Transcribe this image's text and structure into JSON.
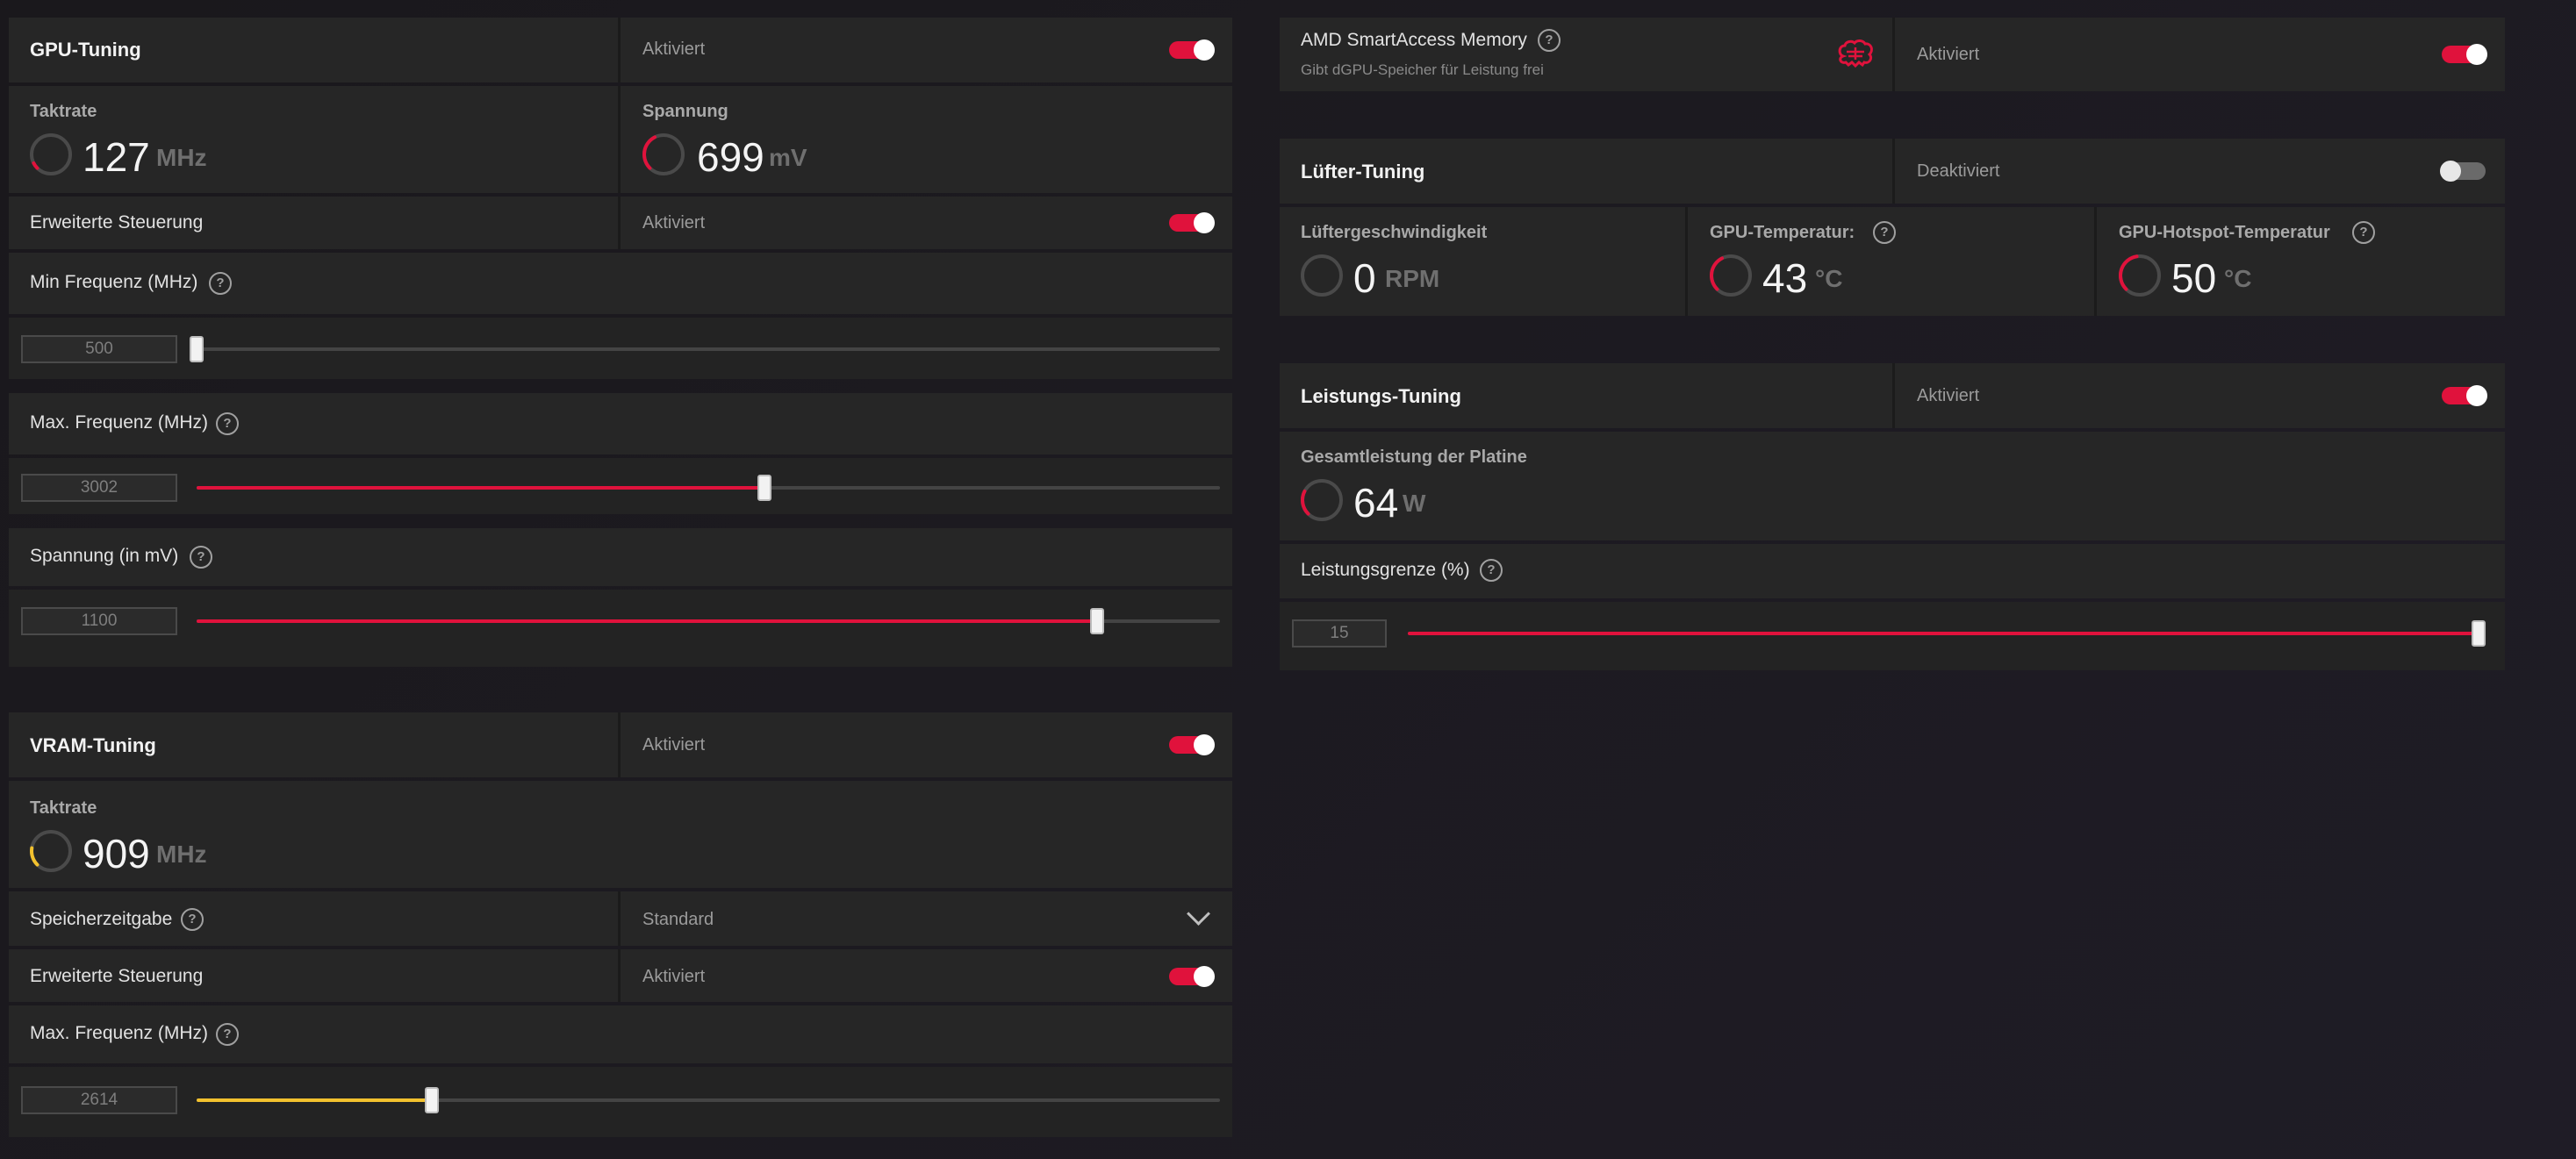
{
  "gpu_tuning": {
    "title": "GPU-Tuning",
    "status": "Aktiviert",
    "enabled": true,
    "clock": {
      "label": "Taktrate",
      "value": "127",
      "unit": "MHz",
      "gauge": 0.05
    },
    "voltage": {
      "label": "Spannung",
      "value": "699",
      "unit": "mV",
      "gauge": 0.3
    },
    "advanced": {
      "label": "Erweiterte Steuerung",
      "status": "Aktiviert",
      "enabled": true
    },
    "min_freq": {
      "label": "Min Frequenz (MHz)",
      "value": "500",
      "fraction": 0.0
    },
    "max_freq": {
      "label": "Max. Frequenz (MHz)",
      "value": "3002",
      "fraction": 0.555
    },
    "voltage_limit": {
      "label": "Spannung (in mV)",
      "value": "1100",
      "fraction": 0.88
    }
  },
  "vram_tuning": {
    "title": "VRAM-Tuning",
    "status": "Aktiviert",
    "enabled": true,
    "clock": {
      "label": "Taktrate",
      "value": "909",
      "unit": "MHz",
      "gauge": 0.15
    },
    "memory_timing": {
      "label": "Speicherzeitgabe",
      "value": "Standard"
    },
    "advanced": {
      "label": "Erweiterte Steuerung",
      "status": "Aktiviert",
      "enabled": true
    },
    "max_freq": {
      "label": "Max. Frequenz (MHz)",
      "value": "2614",
      "fraction": 0.23
    }
  },
  "smart_access": {
    "title": "AMD SmartAccess Memory",
    "subtitle": "Gibt dGPU-Speicher für Leistung frei",
    "status": "Aktiviert",
    "enabled": true
  },
  "fan_tuning": {
    "title": "Lüfter-Tuning",
    "status": "Deaktiviert",
    "enabled": false,
    "fan_speed": {
      "label": "Lüftergeschwindigkeit",
      "value": "0",
      "unit": "RPM",
      "gauge": 0.0
    },
    "gpu_temp": {
      "label": "GPU-Temperatur:",
      "value": "43",
      "unit": "°C",
      "gauge": 0.3
    },
    "hotspot_temp": {
      "label": "GPU-Hotspot-Temperatur",
      "value": "50",
      "unit": "°C",
      "gauge": 0.35
    }
  },
  "power_tuning": {
    "title": "Leistungs-Tuning",
    "status": "Aktiviert",
    "enabled": true,
    "board_power": {
      "label": "Gesamtleistung der Platine",
      "value": "64",
      "unit": "W",
      "gauge": 0.2
    },
    "power_limit": {
      "label": "Leistungsgrenze (%)",
      "value": "15",
      "fraction": 1.0
    }
  },
  "colors": {
    "accent_red": "#e0123c",
    "accent_yellow": "#f2c12e",
    "gauge_track": "#4a4a4a"
  },
  "icons": {
    "help": "?",
    "smart_access": "brain-chip-icon",
    "dropdown": "chevron-down-icon"
  }
}
